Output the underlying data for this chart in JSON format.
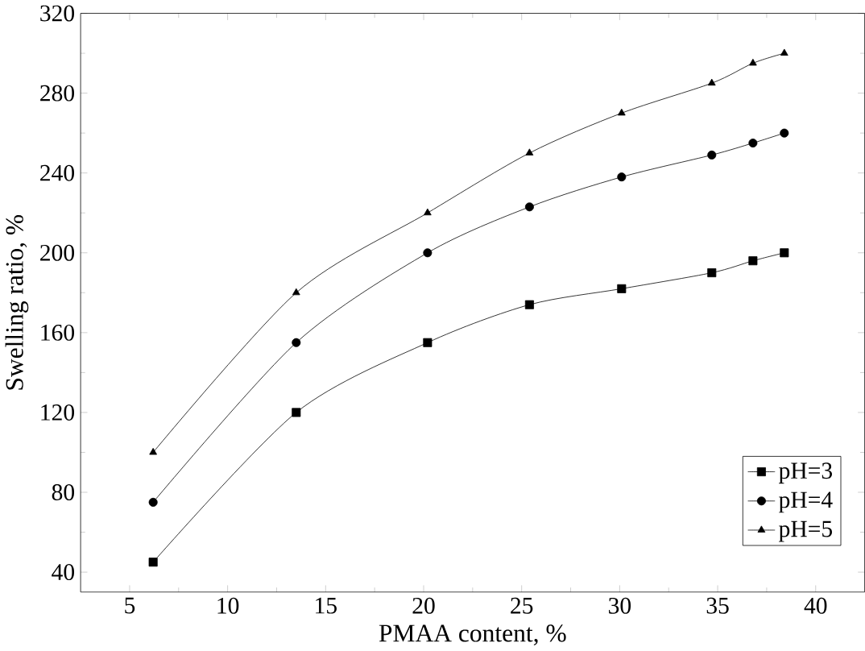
{
  "chart_data": {
    "type": "line",
    "xlabel": "PMAA content, %",
    "ylabel": "Swelling ratio, %",
    "x": [
      6.2,
      13.5,
      20.2,
      25.4,
      30.1,
      34.7,
      36.8,
      38.4
    ],
    "series": [
      {
        "name": "pH=3",
        "color": "#000000",
        "marker": "square",
        "values": [
          45,
          120,
          155,
          174,
          182,
          190,
          196,
          200
        ]
      },
      {
        "name": "pH=4",
        "color": "#000000",
        "marker": "circle",
        "values": [
          75,
          155,
          200,
          223,
          238,
          249,
          255,
          260
        ]
      },
      {
        "name": "pH=5",
        "color": "#000000",
        "marker": "triangle",
        "values": [
          100,
          180,
          220,
          250,
          270,
          285,
          295,
          300
        ]
      }
    ],
    "xlim": [
      2.5,
      42.5
    ],
    "xticks": [
      5,
      10,
      15,
      20,
      25,
      30,
      35,
      40
    ],
    "ylim": [
      30,
      320
    ],
    "yticks": [
      40,
      80,
      120,
      160,
      200,
      240,
      280,
      320
    ],
    "legend": "bottom right",
    "grid": false,
    "line_style": "solid"
  }
}
